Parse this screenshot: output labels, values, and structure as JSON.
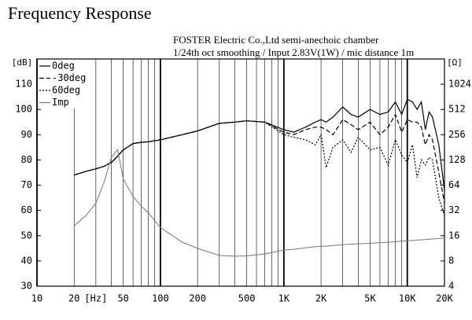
{
  "chart_data": {
    "type": "line",
    "title": "Frequency Response",
    "subtitle": [
      "FOSTER Electric Co.,Ltd  semi-anechoic chamber",
      "1/24th oct smoothing / Input 2.83V(1W) / mic distance 1m"
    ],
    "ylabel": "[dB]",
    "y2label": "[Ω]",
    "xscale": "log",
    "y2scale": "log",
    "legend": "upper left",
    "x": [
      20,
      25,
      30,
      35,
      40,
      45,
      50,
      60,
      70,
      80,
      100,
      150,
      200,
      300,
      400,
      500,
      700,
      1000,
      1200,
      1500,
      1800,
      2000,
      2200,
      2500,
      3000,
      3500,
      4000,
      5000,
      6000,
      7000,
      8000,
      9000,
      10000,
      11000,
      12000,
      13000,
      14000,
      15000,
      16000,
      18000,
      20000
    ],
    "series": [
      {
        "name": "0deg",
        "color": "#000000",
        "dash": "solid",
        "values": [
          74,
          75.5,
          76.5,
          77.5,
          79,
          81.5,
          84,
          86.5,
          87,
          87.2,
          88,
          90,
          91.5,
          94.5,
          95,
          95.5,
          95,
          92,
          91,
          93,
          95,
          96,
          95,
          97,
          101,
          98,
          97,
          100,
          98,
          99,
          103,
          98,
          104,
          103,
          100,
          103,
          92,
          99,
          97,
          86,
          68
        ]
      },
      {
        "name": "-30deg",
        "color": "#000000",
        "dash": "dashed",
        "values": [
          74,
          75.5,
          76.5,
          77.5,
          79,
          81.5,
          84,
          86.5,
          87,
          87.2,
          88,
          90,
          91.5,
          94.5,
          95,
          95.5,
          95,
          91,
          90,
          92,
          93,
          93,
          92,
          90,
          96,
          94,
          92,
          95,
          90,
          93,
          98,
          91,
          96,
          95,
          95,
          93,
          86,
          90,
          88,
          75,
          63
        ]
      },
      {
        "name": "60deg",
        "color": "#000000",
        "dash": "dotted",
        "values": [
          74,
          75.5,
          76.5,
          77.5,
          79,
          81.5,
          84,
          86.5,
          87,
          87.2,
          88,
          90,
          91.5,
          94.5,
          95,
          95.5,
          95,
          90,
          89,
          88,
          86,
          90,
          77,
          85,
          88,
          83,
          89,
          84,
          85,
          78,
          88,
          82,
          79,
          86,
          73,
          80,
          78,
          81,
          80,
          65,
          58
        ]
      },
      {
        "name": "Imp",
        "color": "#777777",
        "dash": "solid",
        "axis": "y2",
        "values": [
          21,
          28,
          39,
          70,
          137,
          170,
          76,
          47,
          36,
          30,
          20,
          13.4,
          11.3,
          9.3,
          9.1,
          9.2,
          9.7,
          10.8,
          11,
          11.5,
          11.8,
          12,
          12,
          12.2,
          12.5,
          12.7,
          12.8,
          13,
          13.2,
          13.4,
          13.6,
          13.8,
          14,
          14,
          14.2,
          14.3,
          14.4,
          14.5,
          14.6,
          14.8,
          15
        ]
      }
    ],
    "xlim": [
      10,
      20000
    ],
    "xticks": [
      10,
      20,
      {
        "value": 30,
        "label": "[Hz]"
      },
      50,
      100,
      200,
      500,
      {
        "value": 1000,
        "label": "1K"
      },
      {
        "value": 2000,
        "label": "2K"
      },
      {
        "value": 5000,
        "label": "5K"
      },
      {
        "value": 10000,
        "label": "10K"
      },
      {
        "value": 20000,
        "label": "20K"
      }
    ],
    "xminor": [
      40,
      60,
      70,
      80,
      90,
      300,
      400,
      600,
      700,
      800,
      900,
      3000,
      4000,
      6000,
      7000,
      8000,
      9000
    ],
    "ylim": [
      30,
      120
    ],
    "yticks": [
      30,
      40,
      50,
      60,
      70,
      80,
      90,
      100,
      110
    ],
    "y2lim": [
      4,
      2048
    ],
    "y2ticks": [
      4,
      8,
      16,
      32,
      64,
      128,
      256,
      512,
      1024
    ]
  }
}
